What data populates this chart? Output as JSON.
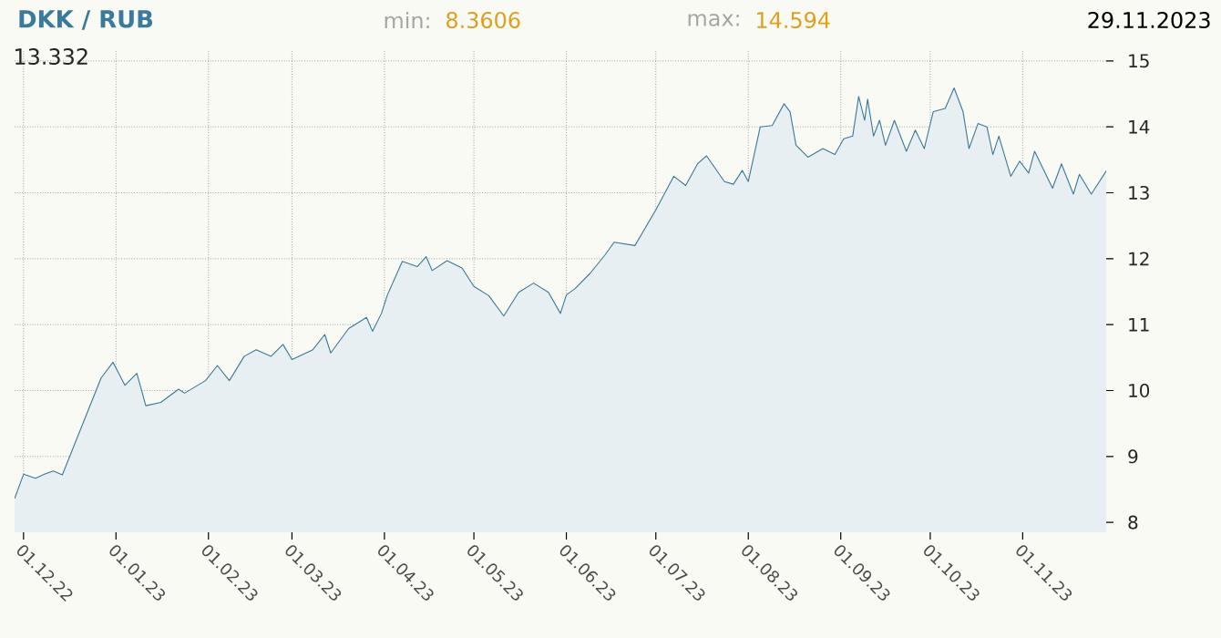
{
  "chart_data": {
    "type": "area",
    "title": "DKK / RUB",
    "annotations": [
      "min:",
      "8.3606",
      "max:",
      "14.594",
      "29.11.2023",
      "13.332"
    ],
    "x": [
      "2022-11-28",
      "2022-12-01",
      "2022-12-05",
      "2022-12-08",
      "2022-12-11",
      "2022-12-14",
      "2022-12-27",
      "2022-12-31",
      "2023-01-04",
      "2023-01-08",
      "2023-01-11",
      "2023-01-16",
      "2023-01-22",
      "2023-01-24",
      "2023-01-31",
      "2023-02-04",
      "2023-02-08",
      "2023-02-13",
      "2023-02-17",
      "2023-02-22",
      "2023-02-26",
      "2023-03-01",
      "2023-03-08",
      "2023-03-12",
      "2023-03-14",
      "2023-03-20",
      "2023-03-26",
      "2023-03-28",
      "2023-03-31",
      "2023-04-02",
      "2023-04-07",
      "2023-04-12",
      "2023-04-15",
      "2023-04-17",
      "2023-04-22",
      "2023-04-27",
      "2023-05-01",
      "2023-05-06",
      "2023-05-11",
      "2023-05-16",
      "2023-05-21",
      "2023-05-26",
      "2023-05-30",
      "2023-06-01",
      "2023-06-04",
      "2023-06-09",
      "2023-06-14",
      "2023-06-17",
      "2023-06-24",
      "2023-07-01",
      "2023-07-07",
      "2023-07-11",
      "2023-07-15",
      "2023-07-18",
      "2023-07-24",
      "2023-07-27",
      "2023-07-30",
      "2023-08-01",
      "2023-08-05",
      "2023-08-09",
      "2023-08-13",
      "2023-08-15",
      "2023-08-17",
      "2023-08-21",
      "2023-08-26",
      "2023-08-30",
      "2023-09-02",
      "2023-09-05",
      "2023-09-07",
      "2023-09-09",
      "2023-09-10",
      "2023-09-12",
      "2023-09-14",
      "2023-09-16",
      "2023-09-19",
      "2023-09-23",
      "2023-09-26",
      "2023-09-29",
      "2023-10-02",
      "2023-10-06",
      "2023-10-09",
      "2023-10-12",
      "2023-10-14",
      "2023-10-17",
      "2023-10-20",
      "2023-10-22",
      "2023-10-24",
      "2023-10-28",
      "2023-10-31",
      "2023-11-03",
      "2023-11-05",
      "2023-11-11",
      "2023-11-14",
      "2023-11-18",
      "2023-11-20",
      "2023-11-24",
      "2023-11-29"
    ],
    "values": [
      8.36,
      8.73,
      8.67,
      8.73,
      8.78,
      8.72,
      10.19,
      10.43,
      10.08,
      10.26,
      9.77,
      9.82,
      10.02,
      9.96,
      10.15,
      10.38,
      10.15,
      10.52,
      10.62,
      10.52,
      10.7,
      10.47,
      10.62,
      10.85,
      10.57,
      10.94,
      11.11,
      10.9,
      11.17,
      11.45,
      11.96,
      11.88,
      12.03,
      11.82,
      11.97,
      11.86,
      11.58,
      11.44,
      11.13,
      11.49,
      11.63,
      11.49,
      11.17,
      11.45,
      11.55,
      11.78,
      12.06,
      12.25,
      12.2,
      12.74,
      13.25,
      13.11,
      13.44,
      13.56,
      13.17,
      13.13,
      13.34,
      13.17,
      14.0,
      14.02,
      14.35,
      14.23,
      13.72,
      13.54,
      13.67,
      13.58,
      13.82,
      13.86,
      14.46,
      14.1,
      14.42,
      13.86,
      14.1,
      13.72,
      14.1,
      13.63,
      13.95,
      13.67,
      14.23,
      14.28,
      14.59,
      14.23,
      13.67,
      14.05,
      14.0,
      13.58,
      13.86,
      13.25,
      13.48,
      13.3,
      13.63,
      13.07,
      13.44,
      12.98,
      13.28,
      12.98,
      13.33
    ],
    "color": "#3b7896",
    "xlim": [
      "2022-11-28",
      "2023-11-29"
    ],
    "xticks": [
      {
        "value": "2022-12-01",
        "label": "01.12.22"
      },
      {
        "value": "2023-01-01",
        "label": "01.01.23"
      },
      {
        "value": "2023-02-01",
        "label": "01.02.23"
      },
      {
        "value": "2023-03-01",
        "label": "01.03.23"
      },
      {
        "value": "2023-04-01",
        "label": "01.04.23"
      },
      {
        "value": "2023-05-01",
        "label": "01.05.23"
      },
      {
        "value": "2023-06-01",
        "label": "01.06.23"
      },
      {
        "value": "2023-07-01",
        "label": "01.07.23"
      },
      {
        "value": "2023-08-01",
        "label": "01.08.23"
      },
      {
        "value": "2023-09-01",
        "label": "01.09.23"
      },
      {
        "value": "2023-10-01",
        "label": "01.10.23"
      },
      {
        "value": "2023-11-01",
        "label": "01.11.23"
      }
    ],
    "ylim": [
      7.85,
      15.15
    ],
    "yticks": [
      8,
      9,
      10,
      11,
      12,
      13,
      14,
      15
    ],
    "grid": true
  }
}
